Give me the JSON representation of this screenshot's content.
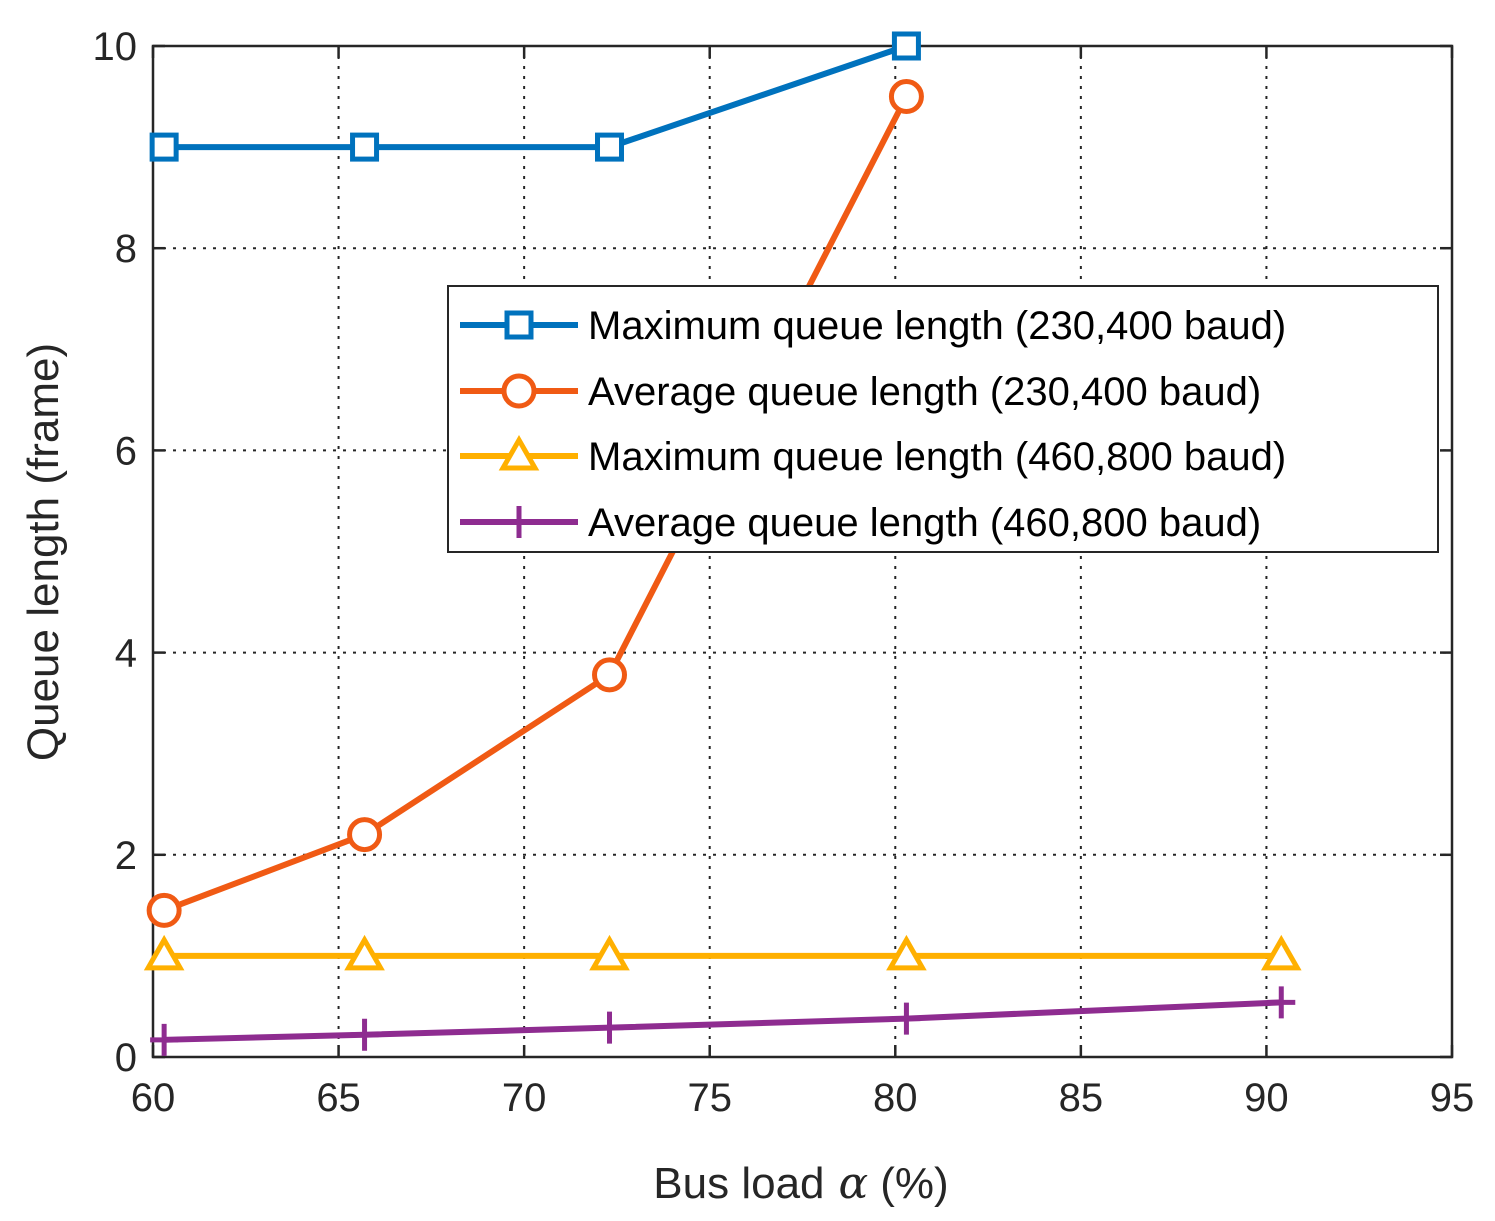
{
  "chart_data": {
    "type": "line",
    "title": "",
    "xlabel": "Bus load",
    "xlabel_symbol": "α",
    "xlabel_unit": "(%)",
    "ylabel": "Queue length (frame)",
    "xlim": [
      60,
      95
    ],
    "ylim": [
      0,
      10
    ],
    "xticks": [
      60,
      65,
      70,
      75,
      80,
      85,
      90,
      95
    ],
    "yticks": [
      0,
      2,
      4,
      6,
      8,
      10
    ],
    "grid": true,
    "legend_position": "upper-right",
    "series": [
      {
        "name": "Maximum queue length (230,400 baud)",
        "color": "#0072BD",
        "marker": "square",
        "x": [
          60.3,
          65.7,
          72.3,
          80.3
        ],
        "y": [
          9,
          9,
          9,
          10
        ]
      },
      {
        "name": "Average queue length (230,400 baud)",
        "color": "#F05A14",
        "marker": "circle",
        "x": [
          60.3,
          65.7,
          72.3,
          80.3
        ],
        "y": [
          1.45,
          2.2,
          3.78,
          9.5
        ]
      },
      {
        "name": "Maximum queue length (460,800 baud)",
        "color": "#FFB000",
        "marker": "triangle",
        "x": [
          60.3,
          65.7,
          72.3,
          80.3,
          90.4
        ],
        "y": [
          1.0,
          1.0,
          1.0,
          1.0,
          1.0
        ]
      },
      {
        "name": "Average queue length (460,800 baud)",
        "color": "#8E2C90",
        "marker": "plus",
        "x": [
          60.3,
          65.7,
          72.3,
          80.3,
          90.4
        ],
        "y": [
          0.17,
          0.22,
          0.29,
          0.38,
          0.54
        ]
      }
    ]
  }
}
